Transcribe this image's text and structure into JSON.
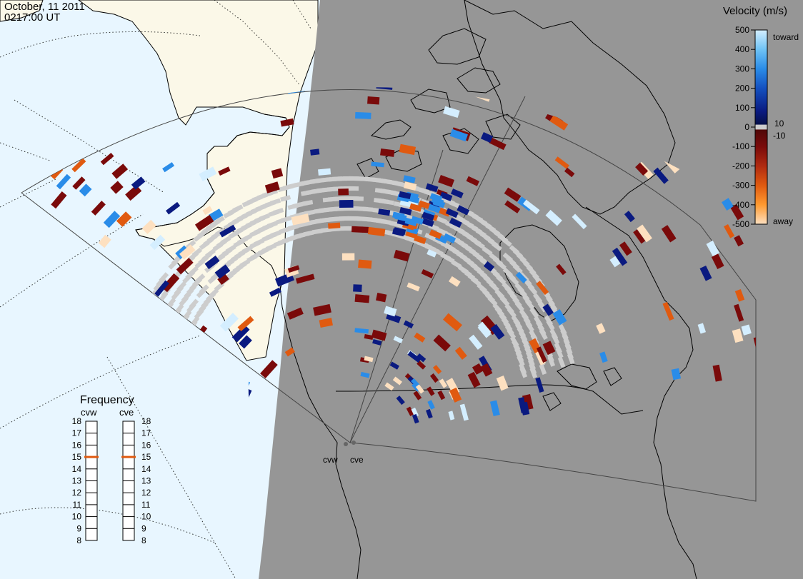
{
  "header": {
    "date": "October, 11 2011",
    "time": "0217:00 UT"
  },
  "radars": [
    {
      "code": "cvw",
      "frequency_mhz": 15
    },
    {
      "code": "cve",
      "frequency_mhz": 15
    }
  ],
  "velocity_scale": {
    "title": "Velocity (m/s)",
    "ticks": [
      "500",
      "400",
      "300",
      "200",
      "100",
      "0",
      "-100",
      "-200",
      "-300",
      "-400",
      "-500"
    ],
    "toward_label": "toward",
    "away_label": "away",
    "plus_label": "10",
    "minus_label": "-10",
    "colors": {
      "toward_max": "#d4eeff",
      "toward_mid": "#2a8ce8",
      "toward_min": "#0a1a80",
      "ground_scatter": "#cdcdcd",
      "away_min": "#7a0a0a",
      "away_mid": "#e05a10",
      "away_max": "#fde0c0"
    }
  },
  "frequency_panel": {
    "title": "Frequency",
    "labels": [
      "18",
      "17",
      "16",
      "15",
      "14",
      "13",
      "12",
      "11",
      "10",
      "9",
      "8"
    ],
    "marker_color": "#e05a10"
  },
  "map_colors": {
    "night_side": "#969696",
    "day_ocean": "#e8f6ff",
    "day_land": "#fbf8e8",
    "coastline": "#000000",
    "ground_scatter": "#cdcdcd"
  }
}
